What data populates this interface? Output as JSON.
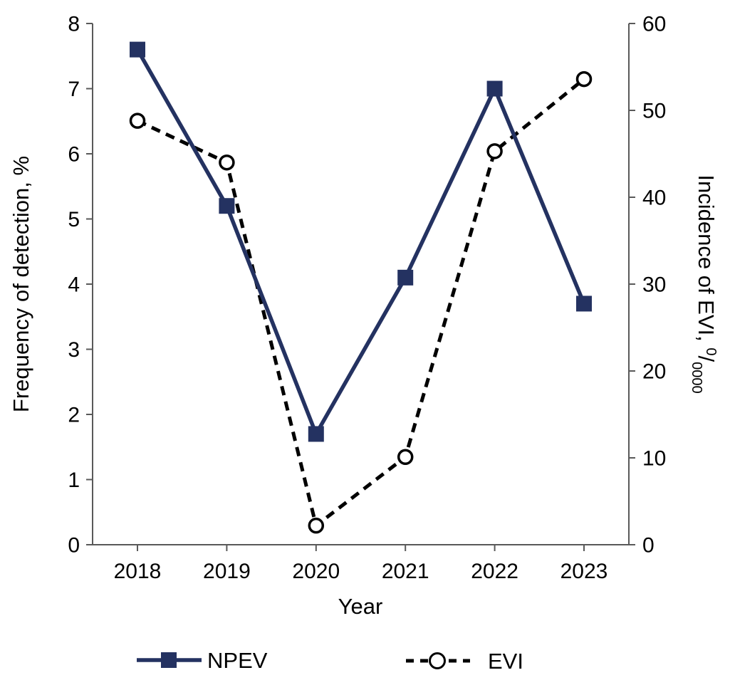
{
  "chart_data": {
    "type": "line",
    "title": "",
    "categories": [
      "2018",
      "2019",
      "2020",
      "2021",
      "2022",
      "2023"
    ],
    "xlabel": "Year",
    "series": [
      {
        "name": "NPEV",
        "axis": "left",
        "values": [
          7.6,
          5.2,
          1.7,
          4.1,
          7.0,
          3.7
        ],
        "color": "#243261",
        "line_style": "solid",
        "marker": "filled-square"
      },
      {
        "name": "EVI",
        "axis": "right",
        "values": [
          48.8,
          44.0,
          2.2,
          10.1,
          45.3,
          53.6
        ],
        "color": "#000000",
        "line_style": "dashed",
        "marker": "open-circle"
      }
    ],
    "left_axis": {
      "label": "Frequency of detection, %",
      "min": 0,
      "max": 8,
      "tick_step": 1
    },
    "right_axis": {
      "label": "Incidence of EVI, 0/0000",
      "label_prefix": "Incidence of EVI, ",
      "label_sup": "0",
      "label_slash": "/",
      "label_sub": "0000",
      "min": 0,
      "max": 60,
      "tick_step": 10
    },
    "grid": false,
    "legend_position": "bottom",
    "background_color": "#ffffff",
    "axis_color": "#595959",
    "text_color": "#000000"
  }
}
